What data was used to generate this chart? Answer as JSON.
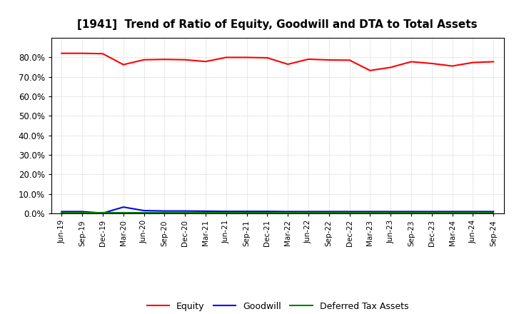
{
  "title": "[1941]  Trend of Ratio of Equity, Goodwill and DTA to Total Assets",
  "x_labels": [
    "Jun-19",
    "Sep-19",
    "Dec-19",
    "Mar-20",
    "Jun-20",
    "Sep-20",
    "Dec-20",
    "Mar-21",
    "Jun-21",
    "Sep-21",
    "Dec-21",
    "Mar-22",
    "Jun-22",
    "Sep-22",
    "Dec-22",
    "Mar-23",
    "Jun-23",
    "Sep-23",
    "Dec-23",
    "Mar-24",
    "Jun-24",
    "Sep-24"
  ],
  "equity": [
    0.82,
    0.82,
    0.818,
    0.762,
    0.787,
    0.789,
    0.787,
    0.778,
    0.799,
    0.799,
    0.797,
    0.764,
    0.79,
    0.786,
    0.785,
    0.732,
    0.748,
    0.777,
    0.768,
    0.755,
    0.773,
    0.777
  ],
  "goodwill": [
    0.01,
    0.01,
    0.002,
    0.033,
    0.015,
    0.013,
    0.013,
    0.012,
    0.011,
    0.011,
    0.011,
    0.01,
    0.01,
    0.01,
    0.01,
    0.01,
    0.01,
    0.01,
    0.01,
    0.01,
    0.01,
    0.01
  ],
  "dta": [
    0.005,
    0.005,
    0.005,
    0.005,
    0.005,
    0.005,
    0.005,
    0.005,
    0.005,
    0.005,
    0.005,
    0.005,
    0.005,
    0.005,
    0.005,
    0.005,
    0.005,
    0.005,
    0.005,
    0.005,
    0.005,
    0.005
  ],
  "equity_color": "#FF0000",
  "goodwill_color": "#0000FF",
  "dta_color": "#008000",
  "ylim": [
    0.0,
    0.9
  ],
  "yticks": [
    0.0,
    0.1,
    0.2,
    0.3,
    0.4,
    0.5,
    0.6,
    0.7,
    0.8
  ],
  "background_color": "#FFFFFF",
  "grid_color": "#BBBBBB"
}
